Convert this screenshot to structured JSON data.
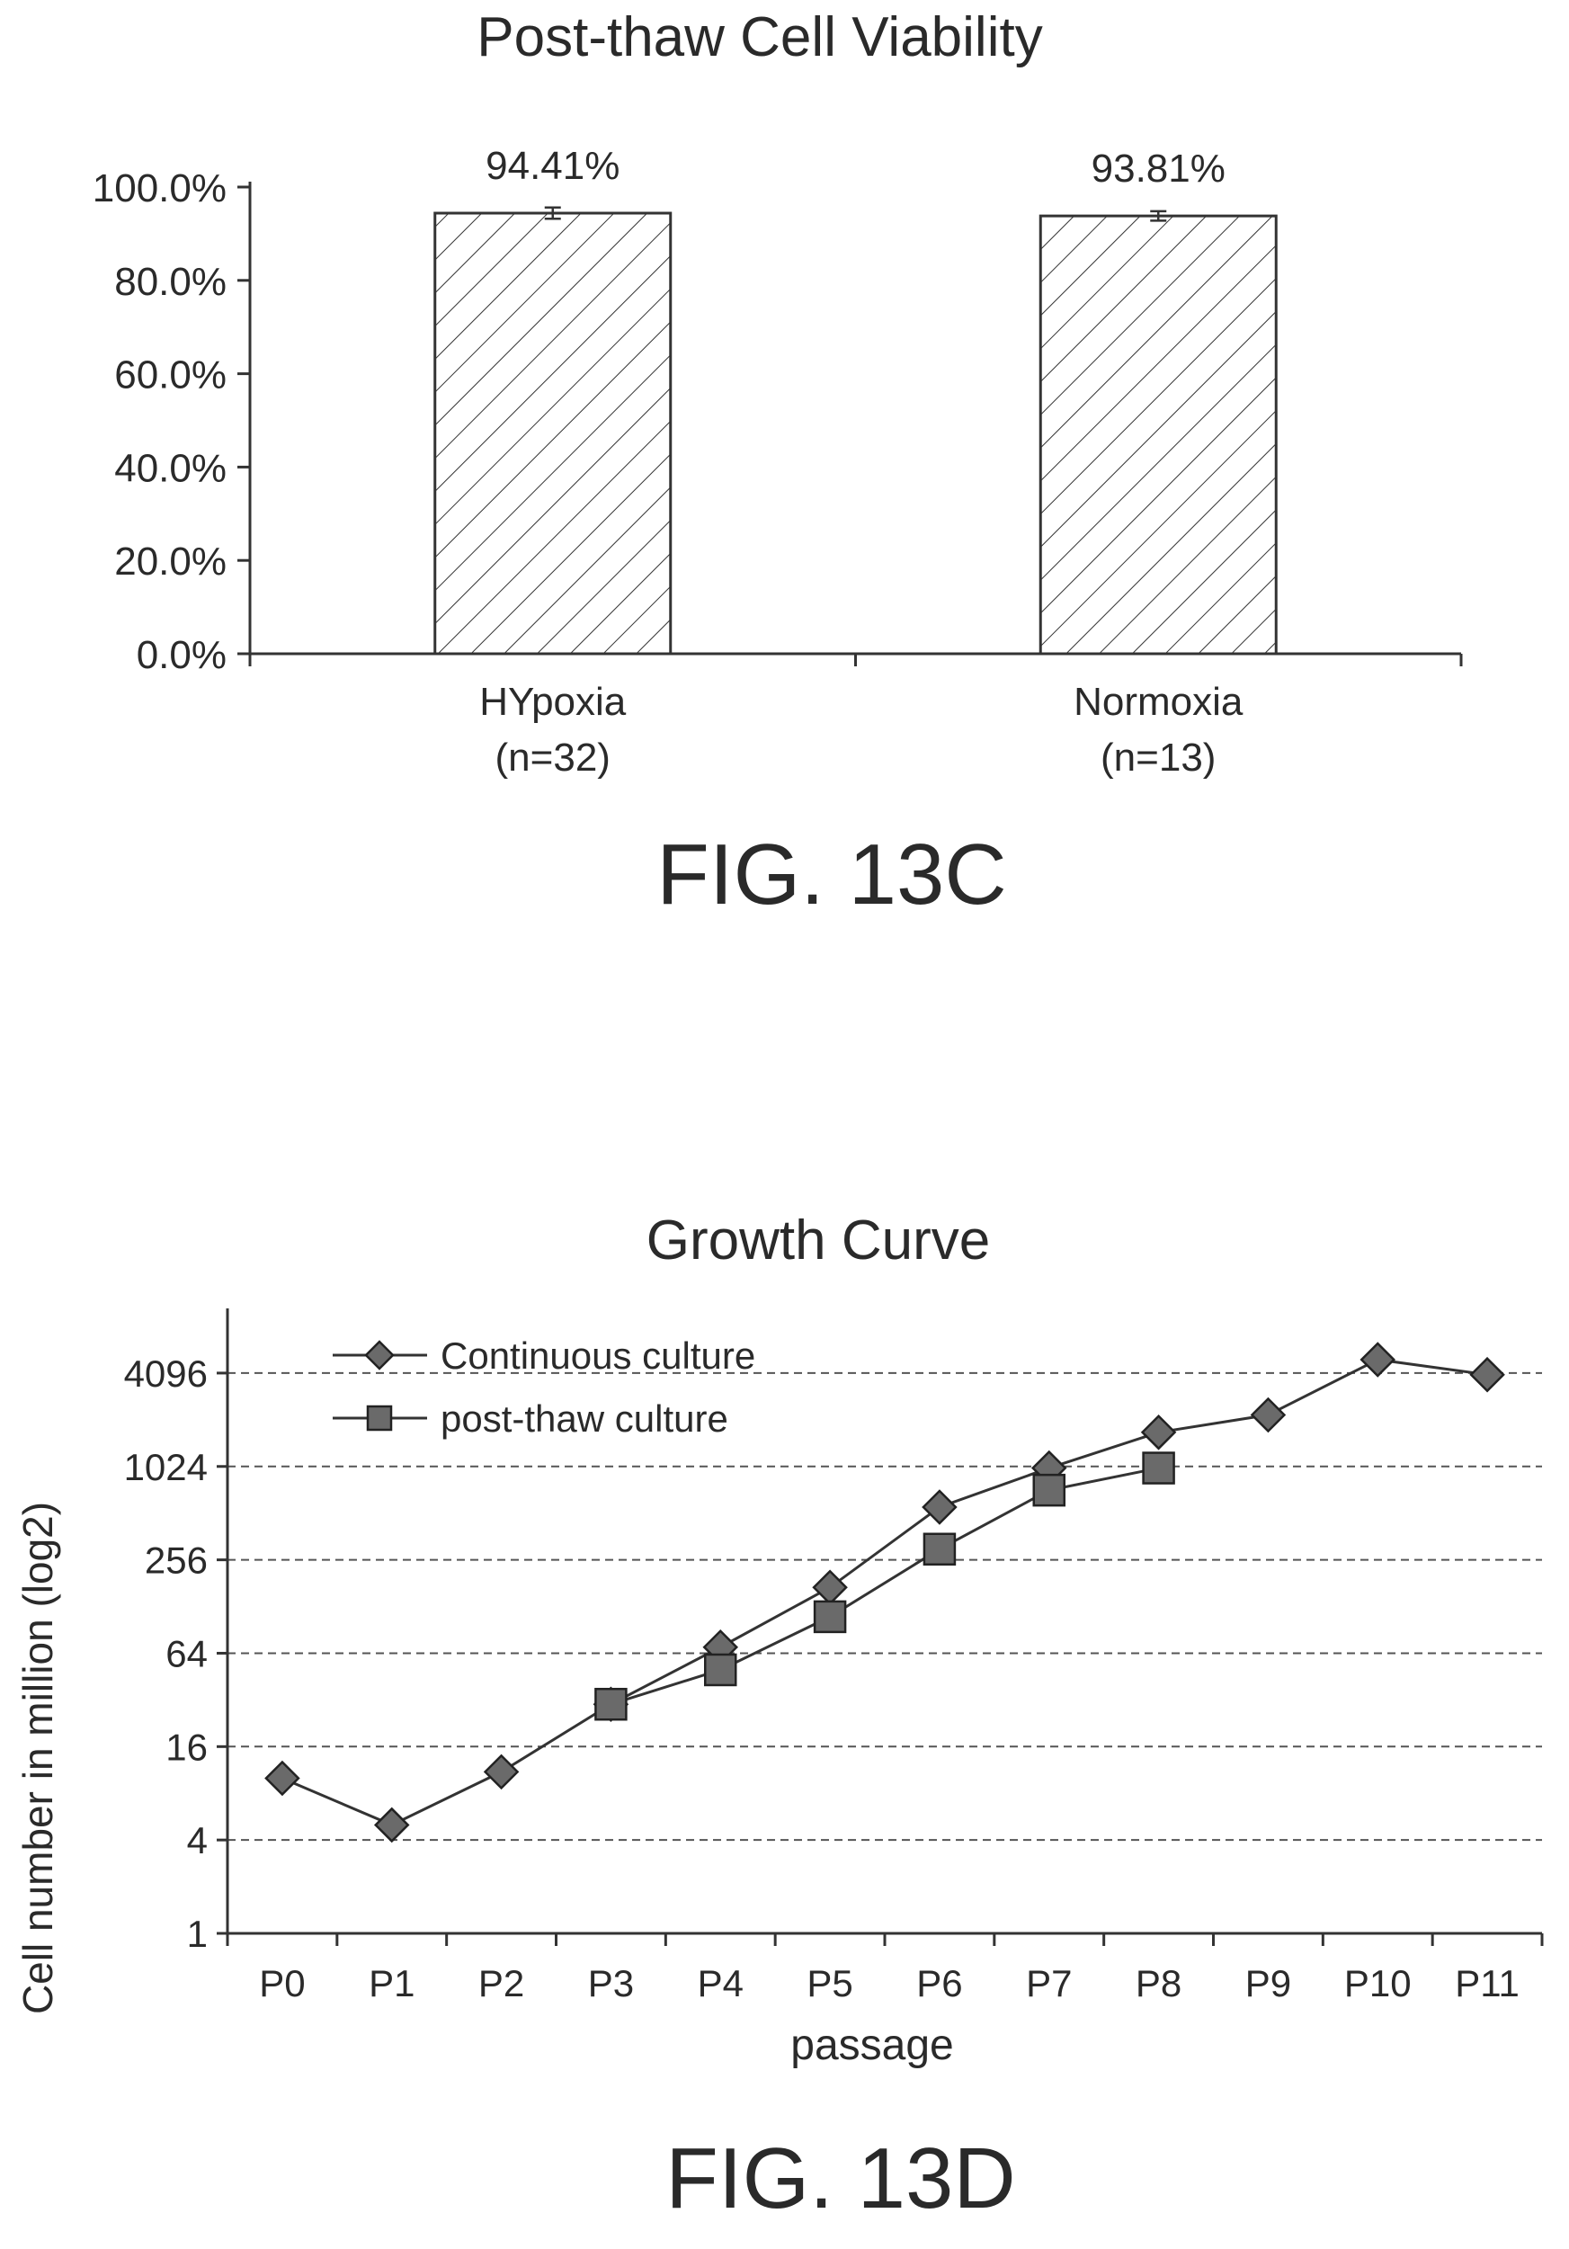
{
  "chart_data": [
    {
      "type": "bar",
      "title": "Post-thaw Cell Viability",
      "categories": [
        "HYpoxia",
        "Normoxia"
      ],
      "category_sublabels": [
        "(n=32)",
        "(n=13)"
      ],
      "values": [
        94.41,
        93.81
      ],
      "error": [
        1.2,
        1.0
      ],
      "value_labels": [
        "94.41%",
        "93.81%"
      ],
      "ylim": [
        0,
        100
      ],
      "yticks": [
        0,
        20,
        40,
        60,
        80,
        100
      ],
      "ytick_labels": [
        "0.0%",
        "20.0%",
        "40.0%",
        "60.0%",
        "80.0%",
        "100.0%"
      ],
      "bar_fill": "hatched",
      "figure_label": "FIG. 13C"
    },
    {
      "type": "line",
      "title": "Growth Curve",
      "xlabel": "passage",
      "ylabel": "Cell number in million (log2)",
      "categories": [
        "P0",
        "P1",
        "P2",
        "P3",
        "P4",
        "P5",
        "P6",
        "P7",
        "P8",
        "P9",
        "P10",
        "P11"
      ],
      "yscale": "log2",
      "ylim": [
        1,
        8192
      ],
      "yticks": [
        1,
        4,
        16,
        64,
        256,
        1024,
        4096
      ],
      "ytick_labels": [
        "1",
        "4",
        "16",
        "64",
        "256",
        "1024",
        "4096"
      ],
      "grid": "horizontal dashed",
      "legend_position": "top-left",
      "series": [
        {
          "name": "Continuous culture",
          "marker": "diamond",
          "values": [
            10,
            5,
            11,
            30,
            70,
            170,
            560,
            1000,
            1700,
            2200,
            5000,
            4000
          ]
        },
        {
          "name": "post-thaw culture",
          "marker": "square",
          "values": [
            null,
            null,
            null,
            30,
            50,
            110,
            300,
            720,
            1000,
            null,
            null,
            null
          ]
        }
      ],
      "figure_label": "FIG. 13D"
    }
  ]
}
